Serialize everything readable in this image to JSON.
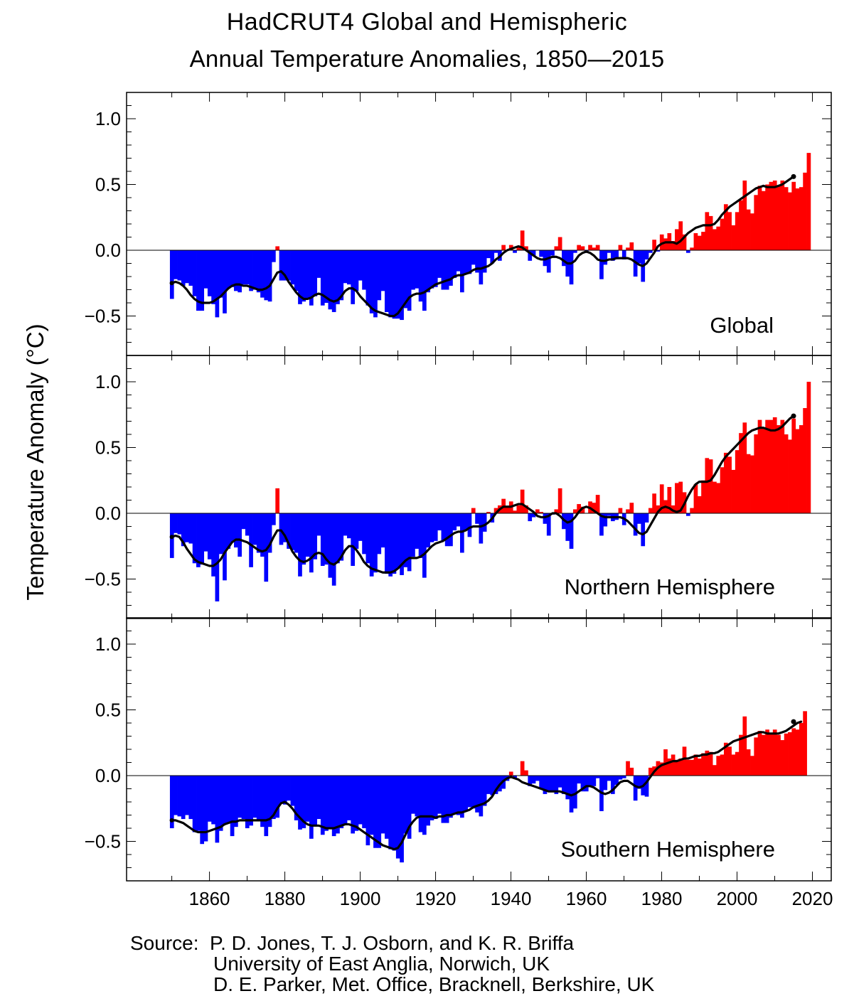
{
  "title": "HadCRUT4 Global and Hemispheric",
  "subtitle": "Annual Temperature Anomalies, 1850—2015",
  "ylabel": "Temperature Anomaly (°C)",
  "source": {
    "line1": "Source:  P. D. Jones, T. J. Osborn, and K. R. Briffa",
    "line2": "University of East Anglia, Norwich, UK",
    "line3": "D. E. Parker, Met. Office, Bracknell, Berkshire, UK"
  },
  "colors": {
    "positive": "#ff0000",
    "negative": "#0000ff",
    "smooth": "#000000"
  },
  "chart_data": [
    {
      "type": "bar",
      "title": "Global",
      "x_start": 1850,
      "x_end": 2015,
      "xlim": [
        1838,
        2025
      ],
      "ylim": [
        -0.8,
        1.2
      ],
      "y_ticks": [
        -0.5,
        0.0,
        0.5,
        1.0
      ],
      "y_tick_labels": [
        "−0.5",
        "0.0",
        "0.5",
        "1.0"
      ],
      "x_ticks": [
        1860,
        1880,
        1900,
        1920,
        1940,
        1960,
        1980,
        2000,
        2020
      ],
      "x_tick_labels": [
        "1860",
        "1880",
        "1900",
        "1920",
        "1940",
        "1960",
        "1980",
        "2000",
        "2020"
      ],
      "grid": false,
      "values": [
        -0.37,
        -0.22,
        -0.23,
        -0.27,
        -0.25,
        -0.27,
        -0.35,
        -0.46,
        -0.46,
        -0.29,
        -0.35,
        -0.41,
        -0.51,
        -0.36,
        -0.48,
        -0.29,
        -0.28,
        -0.31,
        -0.32,
        -0.26,
        -0.26,
        -0.31,
        -0.3,
        -0.32,
        -0.36,
        -0.38,
        -0.39,
        -0.09,
        0.03,
        -0.23,
        -0.23,
        -0.23,
        -0.26,
        -0.31,
        -0.41,
        -0.39,
        -0.37,
        -0.42,
        -0.35,
        -0.21,
        -0.42,
        -0.4,
        -0.45,
        -0.47,
        -0.41,
        -0.38,
        -0.25,
        -0.26,
        -0.41,
        -0.31,
        -0.23,
        -0.3,
        -0.42,
        -0.48,
        -0.51,
        -0.38,
        -0.31,
        -0.47,
        -0.51,
        -0.52,
        -0.52,
        -0.53,
        -0.44,
        -0.46,
        -0.3,
        -0.29,
        -0.39,
        -0.46,
        -0.32,
        -0.29,
        -0.28,
        -0.21,
        -0.3,
        -0.3,
        -0.27,
        -0.21,
        -0.16,
        -0.32,
        -0.18,
        -0.18,
        -0.11,
        -0.17,
        -0.26,
        -0.17,
        -0.06,
        -0.1,
        -0.02,
        -0.08,
        0.04,
        0.0,
        0.04,
        -0.02,
        0.03,
        0.15,
        0.03,
        -0.08,
        -0.04,
        0.0,
        -0.05,
        -0.12,
        -0.17,
        -0.04,
        0.03,
        0.1,
        -0.12,
        -0.2,
        -0.26,
        -0.02,
        0.04,
        0.03,
        -0.02,
        0.04,
        0.02,
        0.04,
        -0.22,
        -0.11,
        -0.02,
        -0.08,
        -0.06,
        0.04,
        -0.07,
        0.02,
        0.06,
        -0.2,
        -0.1,
        -0.24,
        -0.07,
        -0.02,
        0.08,
        -0.01,
        0.12,
        0.09,
        0.13,
        0.07,
        0.16,
        0.22,
        0.12,
        -0.02,
        0.02,
        0.13,
        0.11,
        0.14,
        0.29,
        0.26,
        0.16,
        0.18,
        0.24,
        0.35,
        0.29,
        0.19,
        0.29,
        0.38,
        0.53,
        0.31,
        0.28,
        0.42,
        0.49,
        0.45,
        0.5,
        0.52,
        0.53,
        0.49,
        0.53,
        0.48,
        0.44,
        0.52,
        0.47,
        0.48,
        0.59,
        0.74
      ],
      "smooth": [
        -0.25,
        -0.24,
        -0.25,
        -0.27,
        -0.3,
        -0.34,
        -0.37,
        -0.39,
        -0.4,
        -0.4,
        -0.4,
        -0.39,
        -0.37,
        -0.35,
        -0.32,
        -0.29,
        -0.27,
        -0.26,
        -0.26,
        -0.27,
        -0.27,
        -0.28,
        -0.29,
        -0.3,
        -0.3,
        -0.29,
        -0.27,
        -0.22,
        -0.17,
        -0.16,
        -0.19,
        -0.24,
        -0.28,
        -0.32,
        -0.35,
        -0.37,
        -0.37,
        -0.36,
        -0.34,
        -0.33,
        -0.34,
        -0.36,
        -0.38,
        -0.39,
        -0.38,
        -0.35,
        -0.31,
        -0.29,
        -0.29,
        -0.31,
        -0.35,
        -0.38,
        -0.41,
        -0.44,
        -0.46,
        -0.47,
        -0.48,
        -0.49,
        -0.5,
        -0.5,
        -0.48,
        -0.44,
        -0.4,
        -0.36,
        -0.34,
        -0.33,
        -0.33,
        -0.32,
        -0.3,
        -0.28,
        -0.26,
        -0.25,
        -0.24,
        -0.23,
        -0.22,
        -0.2,
        -0.19,
        -0.19,
        -0.18,
        -0.17,
        -0.15,
        -0.14,
        -0.14,
        -0.13,
        -0.12,
        -0.1,
        -0.07,
        -0.05,
        -0.02,
        0.0,
        0.01,
        0.02,
        0.03,
        0.02,
        0.0,
        -0.02,
        -0.04,
        -0.06,
        -0.07,
        -0.07,
        -0.06,
        -0.05,
        -0.05,
        -0.06,
        -0.08,
        -0.1,
        -0.1,
        -0.08,
        -0.04,
        -0.02,
        -0.01,
        -0.02,
        -0.04,
        -0.07,
        -0.08,
        -0.08,
        -0.07,
        -0.07,
        -0.06,
        -0.06,
        -0.06,
        -0.06,
        -0.07,
        -0.09,
        -0.11,
        -0.12,
        -0.1,
        -0.06,
        -0.02,
        0.03,
        0.05,
        0.06,
        0.06,
        0.06,
        0.05,
        0.07,
        0.1,
        0.13,
        0.15,
        0.17,
        0.18,
        0.19,
        0.19,
        0.19,
        0.2,
        0.23,
        0.27,
        0.3,
        0.33,
        0.35,
        0.37,
        0.39,
        0.41,
        0.43,
        0.45,
        0.47,
        0.48,
        0.49,
        0.48,
        0.48,
        0.48,
        0.49,
        0.5,
        0.52,
        0.54,
        0.56
      ]
    },
    {
      "type": "bar",
      "title": "Northern Hemisphere",
      "x_start": 1850,
      "x_end": 2015,
      "xlim": [
        1838,
        2025
      ],
      "ylim": [
        -0.8,
        1.2
      ],
      "y_ticks": [
        -0.5,
        0.0,
        0.5,
        1.0
      ],
      "y_tick_labels": [
        "−0.5",
        "0.0",
        "0.5",
        "1.0"
      ],
      "x_ticks": [
        1860,
        1880,
        1900,
        1920,
        1940,
        1960,
        1980,
        2000,
        2020
      ],
      "x_tick_labels": [
        "1860",
        "1880",
        "1900",
        "1920",
        "1940",
        "1960",
        "1980",
        "2000",
        "2020"
      ],
      "grid": false,
      "values": [
        -0.34,
        -0.15,
        -0.16,
        -0.25,
        -0.22,
        -0.23,
        -0.38,
        -0.41,
        -0.39,
        -0.29,
        -0.35,
        -0.48,
        -0.67,
        -0.31,
        -0.51,
        -0.27,
        -0.22,
        -0.26,
        -0.33,
        -0.12,
        -0.17,
        -0.41,
        -0.24,
        -0.3,
        -0.33,
        -0.52,
        -0.3,
        -0.09,
        0.19,
        -0.24,
        -0.22,
        -0.27,
        -0.28,
        -0.3,
        -0.48,
        -0.39,
        -0.33,
        -0.45,
        -0.35,
        -0.17,
        -0.4,
        -0.39,
        -0.49,
        -0.55,
        -0.38,
        -0.36,
        -0.17,
        -0.19,
        -0.4,
        -0.27,
        -0.21,
        -0.31,
        -0.38,
        -0.48,
        -0.45,
        -0.31,
        -0.26,
        -0.46,
        -0.48,
        -0.46,
        -0.42,
        -0.47,
        -0.41,
        -0.44,
        -0.33,
        -0.27,
        -0.34,
        -0.49,
        -0.26,
        -0.22,
        -0.21,
        -0.13,
        -0.21,
        -0.25,
        -0.25,
        -0.13,
        -0.1,
        -0.3,
        -0.13,
        -0.18,
        0.04,
        -0.08,
        -0.23,
        -0.14,
        0.01,
        -0.07,
        0.04,
        0.06,
        0.11,
        0.05,
        0.09,
        0.02,
        0.06,
        0.18,
        0.06,
        -0.06,
        -0.03,
        0.03,
        0.01,
        -0.08,
        -0.17,
        -0.01,
        0.03,
        0.19,
        -0.12,
        -0.21,
        -0.27,
        0.03,
        0.07,
        0.05,
        0.0,
        0.09,
        0.08,
        0.14,
        -0.17,
        -0.1,
        -0.02,
        -0.06,
        -0.05,
        0.04,
        -0.09,
        0.03,
        0.08,
        -0.17,
        -0.08,
        -0.25,
        -0.07,
        0.04,
        0.15,
        0.06,
        0.22,
        0.1,
        0.2,
        0.06,
        0.23,
        0.24,
        0.16,
        -0.02,
        0.04,
        0.22,
        0.13,
        0.25,
        0.42,
        0.41,
        0.24,
        0.23,
        0.35,
        0.46,
        0.43,
        0.33,
        0.48,
        0.61,
        0.69,
        0.45,
        0.44,
        0.6,
        0.71,
        0.65,
        0.71,
        0.71,
        0.73,
        0.67,
        0.71,
        0.6,
        0.56,
        0.72,
        0.64,
        0.67,
        0.8,
        1.0
      ],
      "smooth": [
        -0.18,
        -0.17,
        -0.18,
        -0.22,
        -0.27,
        -0.31,
        -0.35,
        -0.37,
        -0.38,
        -0.39,
        -0.4,
        -0.4,
        -0.38,
        -0.35,
        -0.3,
        -0.26,
        -0.22,
        -0.2,
        -0.2,
        -0.21,
        -0.22,
        -0.24,
        -0.26,
        -0.28,
        -0.29,
        -0.28,
        -0.24,
        -0.18,
        -0.13,
        -0.13,
        -0.17,
        -0.23,
        -0.29,
        -0.33,
        -0.36,
        -0.37,
        -0.36,
        -0.34,
        -0.31,
        -0.3,
        -0.31,
        -0.35,
        -0.38,
        -0.39,
        -0.37,
        -0.33,
        -0.28,
        -0.25,
        -0.25,
        -0.28,
        -0.32,
        -0.37,
        -0.4,
        -0.42,
        -0.43,
        -0.44,
        -0.45,
        -0.45,
        -0.45,
        -0.44,
        -0.42,
        -0.39,
        -0.36,
        -0.34,
        -0.34,
        -0.34,
        -0.33,
        -0.31,
        -0.28,
        -0.25,
        -0.23,
        -0.22,
        -0.21,
        -0.19,
        -0.17,
        -0.15,
        -0.14,
        -0.14,
        -0.13,
        -0.11,
        -0.1,
        -0.1,
        -0.1,
        -0.09,
        -0.07,
        -0.04,
        0.0,
        0.03,
        0.05,
        0.05,
        0.05,
        0.06,
        0.07,
        0.07,
        0.05,
        0.03,
        0.01,
        -0.02,
        -0.03,
        -0.03,
        -0.02,
        0.0,
        0.0,
        -0.02,
        -0.05,
        -0.07,
        -0.06,
        -0.03,
        0.01,
        0.04,
        0.05,
        0.04,
        0.02,
        0.0,
        -0.02,
        -0.03,
        -0.03,
        -0.03,
        -0.03,
        -0.03,
        -0.04,
        -0.06,
        -0.09,
        -0.12,
        -0.15,
        -0.16,
        -0.14,
        -0.09,
        -0.04,
        0.01,
        0.04,
        0.05,
        0.04,
        0.02,
        0.01,
        0.02,
        0.07,
        0.13,
        0.18,
        0.22,
        0.24,
        0.24,
        0.24,
        0.25,
        0.29,
        0.34,
        0.39,
        0.43,
        0.46,
        0.49,
        0.52,
        0.55,
        0.58,
        0.61,
        0.63,
        0.64,
        0.65,
        0.65,
        0.64,
        0.63,
        0.63,
        0.64,
        0.66,
        0.69,
        0.72,
        0.74
      ]
    },
    {
      "type": "bar",
      "title": "Southern Hemisphere",
      "x_start": 1850,
      "x_end": 2015,
      "xlim": [
        1838,
        2025
      ],
      "ylim": [
        -0.8,
        1.2
      ],
      "y_ticks": [
        -0.5,
        0.0,
        0.5,
        1.0
      ],
      "y_tick_labels": [
        "−0.5",
        "0.0",
        "0.5",
        "1.0"
      ],
      "x_ticks": [
        1860,
        1880,
        1900,
        1920,
        1940,
        1960,
        1980,
        2000,
        2020
      ],
      "x_tick_labels": [
        "1860",
        "1880",
        "1900",
        "1920",
        "1940",
        "1960",
        "1980",
        "2000",
        "2020"
      ],
      "grid": false,
      "values": [
        -0.4,
        -0.3,
        -0.31,
        -0.33,
        -0.3,
        -0.33,
        -0.43,
        -0.42,
        -0.52,
        -0.5,
        -0.35,
        -0.37,
        -0.51,
        -0.42,
        -0.37,
        -0.36,
        -0.46,
        -0.39,
        -0.32,
        -0.33,
        -0.4,
        -0.38,
        -0.32,
        -0.34,
        -0.39,
        -0.46,
        -0.39,
        -0.33,
        -0.32,
        -0.21,
        -0.22,
        -0.19,
        -0.23,
        -0.34,
        -0.41,
        -0.4,
        -0.35,
        -0.48,
        -0.38,
        -0.33,
        -0.45,
        -0.42,
        -0.4,
        -0.46,
        -0.44,
        -0.4,
        -0.37,
        -0.34,
        -0.44,
        -0.42,
        -0.37,
        -0.4,
        -0.53,
        -0.45,
        -0.55,
        -0.55,
        -0.44,
        -0.48,
        -0.56,
        -0.57,
        -0.63,
        -0.66,
        -0.44,
        -0.48,
        -0.29,
        -0.31,
        -0.43,
        -0.45,
        -0.38,
        -0.34,
        -0.33,
        -0.29,
        -0.36,
        -0.36,
        -0.32,
        -0.29,
        -0.3,
        -0.32,
        -0.27,
        -0.24,
        -0.25,
        -0.28,
        -0.31,
        -0.23,
        -0.14,
        -0.15,
        -0.14,
        -0.12,
        -0.1,
        -0.04,
        0.03,
        -0.02,
        0.0,
        0.11,
        0.04,
        -0.08,
        -0.06,
        -0.04,
        -0.1,
        -0.14,
        -0.12,
        -0.12,
        -0.14,
        -0.09,
        -0.14,
        -0.18,
        -0.28,
        -0.25,
        -0.06,
        -0.12,
        -0.12,
        -0.08,
        -0.08,
        -0.02,
        -0.27,
        -0.11,
        -0.04,
        -0.14,
        -0.07,
        -0.03,
        -0.02,
        0.11,
        0.06,
        -0.19,
        -0.1,
        -0.15,
        -0.16,
        0.06,
        0.07,
        0.11,
        0.1,
        0.2,
        0.13,
        0.16,
        0.12,
        0.13,
        0.22,
        0.12,
        0.12,
        0.16,
        0.13,
        0.17,
        0.19,
        0.18,
        0.08,
        0.15,
        0.16,
        0.25,
        0.22,
        0.16,
        0.18,
        0.31,
        0.45,
        0.2,
        0.15,
        0.29,
        0.34,
        0.31,
        0.35,
        0.32,
        0.35,
        0.31,
        0.27,
        0.32,
        0.33,
        0.36,
        0.35,
        0.4,
        0.49
      ],
      "smooth": [
        -0.34,
        -0.34,
        -0.35,
        -0.36,
        -0.38,
        -0.4,
        -0.42,
        -0.43,
        -0.43,
        -0.43,
        -0.42,
        -0.41,
        -0.4,
        -0.39,
        -0.37,
        -0.36,
        -0.35,
        -0.35,
        -0.34,
        -0.34,
        -0.34,
        -0.34,
        -0.34,
        -0.34,
        -0.34,
        -0.34,
        -0.33,
        -0.3,
        -0.25,
        -0.21,
        -0.2,
        -0.22,
        -0.25,
        -0.29,
        -0.32,
        -0.35,
        -0.37,
        -0.38,
        -0.38,
        -0.38,
        -0.39,
        -0.4,
        -0.4,
        -0.4,
        -0.39,
        -0.38,
        -0.37,
        -0.37,
        -0.38,
        -0.39,
        -0.41,
        -0.43,
        -0.45,
        -0.47,
        -0.49,
        -0.51,
        -0.53,
        -0.54,
        -0.55,
        -0.56,
        -0.55,
        -0.51,
        -0.45,
        -0.39,
        -0.35,
        -0.32,
        -0.31,
        -0.31,
        -0.31,
        -0.31,
        -0.32,
        -0.31,
        -0.31,
        -0.3,
        -0.3,
        -0.29,
        -0.28,
        -0.28,
        -0.27,
        -0.26,
        -0.24,
        -0.23,
        -0.22,
        -0.21,
        -0.19,
        -0.16,
        -0.11,
        -0.07,
        -0.04,
        -0.02,
        -0.01,
        -0.02,
        -0.03,
        -0.05,
        -0.06,
        -0.07,
        -0.08,
        -0.09,
        -0.1,
        -0.11,
        -0.12,
        -0.12,
        -0.12,
        -0.12,
        -0.13,
        -0.14,
        -0.15,
        -0.14,
        -0.12,
        -0.1,
        -0.08,
        -0.08,
        -0.09,
        -0.11,
        -0.13,
        -0.14,
        -0.13,
        -0.11,
        -0.08,
        -0.05,
        -0.04,
        -0.04,
        -0.06,
        -0.08,
        -0.09,
        -0.08,
        -0.05,
        -0.01,
        0.03,
        0.06,
        0.08,
        0.09,
        0.1,
        0.11,
        0.11,
        0.12,
        0.13,
        0.13,
        0.14,
        0.15,
        0.15,
        0.16,
        0.16,
        0.17,
        0.17,
        0.18,
        0.2,
        0.22,
        0.24,
        0.26,
        0.27,
        0.28,
        0.29,
        0.3,
        0.31,
        0.32,
        0.33,
        0.33,
        0.32,
        0.32,
        0.32,
        0.32,
        0.33,
        0.34,
        0.36,
        0.38,
        0.4,
        0.41
      ]
    }
  ]
}
